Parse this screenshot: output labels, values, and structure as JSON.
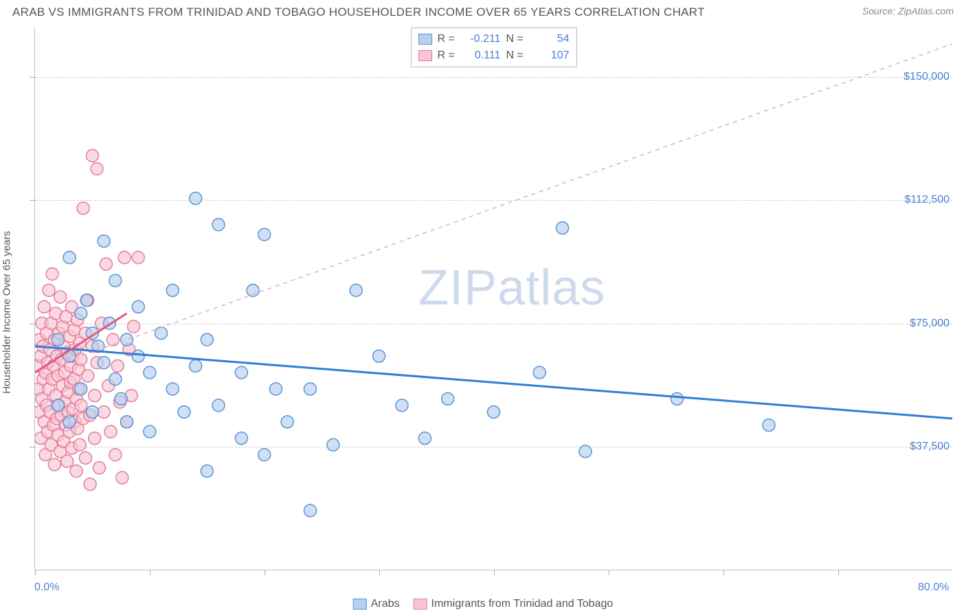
{
  "title": "ARAB VS IMMIGRANTS FROM TRINIDAD AND TOBAGO HOUSEHOLDER INCOME OVER 65 YEARS CORRELATION CHART",
  "source": "Source: ZipAtlas.com",
  "watermark": "ZIPatlas",
  "axis": {
    "y_title": "Householder Income Over 65 years",
    "x_min_label": "0.0%",
    "x_max_label": "80.0%",
    "x_min": 0.0,
    "x_max": 80.0,
    "y_min": 0,
    "y_max": 165000,
    "y_gridlines": [
      {
        "value": 37500,
        "label": "$37,500"
      },
      {
        "value": 75000,
        "label": "$75,000"
      },
      {
        "value": 112500,
        "label": "$112,500"
      },
      {
        "value": 150000,
        "label": "$150,000"
      }
    ],
    "x_ticks": [
      0,
      10,
      20,
      30,
      40,
      50,
      60,
      70
    ]
  },
  "colors": {
    "blue_fill": "#b6d0f0",
    "blue_stroke": "#5a94d6",
    "pink_fill": "#f8c6d3",
    "pink_stroke": "#e67a9a",
    "blue_line": "#2f7ed8",
    "pink_line": "#e05a85",
    "pink_dash": "#f0a8bf",
    "ylabel": "#4a7fd8",
    "grid": "#cccccc",
    "text": "#555555"
  },
  "marker_radius": 9,
  "series": [
    {
      "name": "Arabs",
      "color_key": "blue",
      "stats": {
        "R": "-0.211",
        "N": "54"
      },
      "trend": {
        "x1": 0,
        "y1": 68000,
        "x2": 80,
        "y2": 46000,
        "dash": false
      },
      "points": [
        [
          2,
          70000
        ],
        [
          2,
          50000
        ],
        [
          3,
          95000
        ],
        [
          3,
          65000
        ],
        [
          3,
          45000
        ],
        [
          4,
          78000
        ],
        [
          4,
          55000
        ],
        [
          4.5,
          82000
        ],
        [
          5,
          72000
        ],
        [
          5,
          48000
        ],
        [
          5.5,
          68000
        ],
        [
          6,
          100000
        ],
        [
          6,
          63000
        ],
        [
          6.5,
          75000
        ],
        [
          7,
          58000
        ],
        [
          7,
          88000
        ],
        [
          7.5,
          52000
        ],
        [
          8,
          70000
        ],
        [
          8,
          45000
        ],
        [
          9,
          65000
        ],
        [
          9,
          80000
        ],
        [
          10,
          60000
        ],
        [
          10,
          42000
        ],
        [
          11,
          72000
        ],
        [
          12,
          55000
        ],
        [
          12,
          85000
        ],
        [
          13,
          48000
        ],
        [
          14,
          113000
        ],
        [
          14,
          62000
        ],
        [
          15,
          30000
        ],
        [
          15,
          70000
        ],
        [
          16,
          105000
        ],
        [
          16,
          50000
        ],
        [
          18,
          40000
        ],
        [
          18,
          60000
        ],
        [
          19,
          85000
        ],
        [
          20,
          102000
        ],
        [
          20,
          35000
        ],
        [
          21,
          55000
        ],
        [
          22,
          45000
        ],
        [
          24,
          18000
        ],
        [
          24,
          55000
        ],
        [
          26,
          38000
        ],
        [
          28,
          85000
        ],
        [
          30,
          65000
        ],
        [
          32,
          50000
        ],
        [
          34,
          40000
        ],
        [
          36,
          52000
        ],
        [
          40,
          48000
        ],
        [
          44,
          60000
        ],
        [
          46,
          104000
        ],
        [
          48,
          36000
        ],
        [
          56,
          52000
        ],
        [
          64,
          44000
        ]
      ]
    },
    {
      "name": "Immigants from Trinidad and Tobago",
      "legend_label": "Immigrants from Trinidad and Tobago",
      "color_key": "pink",
      "stats": {
        "R": "0.111",
        "N": "107"
      },
      "trend": {
        "x1": 0,
        "y1": 60000,
        "x2": 8,
        "y2": 78000,
        "dash": false
      },
      "projection": {
        "x1": 0,
        "y1": 60000,
        "x2": 80,
        "y2": 160000,
        "dash": true
      },
      "points": [
        [
          0.3,
          62000
        ],
        [
          0.3,
          55000
        ],
        [
          0.4,
          70000
        ],
        [
          0.4,
          48000
        ],
        [
          0.5,
          65000
        ],
        [
          0.5,
          40000
        ],
        [
          0.6,
          75000
        ],
        [
          0.6,
          52000
        ],
        [
          0.7,
          58000
        ],
        [
          0.7,
          68000
        ],
        [
          0.8,
          45000
        ],
        [
          0.8,
          80000
        ],
        [
          0.9,
          60000
        ],
        [
          0.9,
          35000
        ],
        [
          1.0,
          72000
        ],
        [
          1.0,
          50000
        ],
        [
          1.1,
          63000
        ],
        [
          1.1,
          42000
        ],
        [
          1.2,
          85000
        ],
        [
          1.2,
          55000
        ],
        [
          1.3,
          48000
        ],
        [
          1.3,
          67000
        ],
        [
          1.4,
          38000
        ],
        [
          1.4,
          75000
        ],
        [
          1.5,
          58000
        ],
        [
          1.5,
          90000
        ],
        [
          1.6,
          44000
        ],
        [
          1.6,
          62000
        ],
        [
          1.7,
          70000
        ],
        [
          1.7,
          32000
        ],
        [
          1.8,
          53000
        ],
        [
          1.8,
          78000
        ],
        [
          1.9,
          46000
        ],
        [
          1.9,
          65000
        ],
        [
          2.0,
          59000
        ],
        [
          2.0,
          41000
        ],
        [
          2.1,
          72000
        ],
        [
          2.1,
          50000
        ],
        [
          2.2,
          83000
        ],
        [
          2.2,
          36000
        ],
        [
          2.3,
          64000
        ],
        [
          2.3,
          47000
        ],
        [
          2.4,
          56000
        ],
        [
          2.4,
          74000
        ],
        [
          2.5,
          39000
        ],
        [
          2.5,
          68000
        ],
        [
          2.6,
          51000
        ],
        [
          2.6,
          60000
        ],
        [
          2.7,
          44000
        ],
        [
          2.7,
          77000
        ],
        [
          2.8,
          33000
        ],
        [
          2.8,
          66000
        ],
        [
          2.9,
          54000
        ],
        [
          2.9,
          48000
        ],
        [
          3.0,
          71000
        ],
        [
          3.0,
          42000
        ],
        [
          3.1,
          62000
        ],
        [
          3.1,
          57000
        ],
        [
          3.2,
          80000
        ],
        [
          3.2,
          37000
        ],
        [
          3.3,
          65000
        ],
        [
          3.3,
          49000
        ],
        [
          3.4,
          58000
        ],
        [
          3.4,
          73000
        ],
        [
          3.5,
          45000
        ],
        [
          3.5,
          67000
        ],
        [
          3.6,
          52000
        ],
        [
          3.6,
          30000
        ],
        [
          3.7,
          76000
        ],
        [
          3.7,
          43000
        ],
        [
          3.8,
          61000
        ],
        [
          3.8,
          55000
        ],
        [
          3.9,
          69000
        ],
        [
          3.9,
          38000
        ],
        [
          4.0,
          64000
        ],
        [
          4.0,
          50000
        ],
        [
          4.2,
          110000
        ],
        [
          4.2,
          46000
        ],
        [
          4.4,
          72000
        ],
        [
          4.4,
          34000
        ],
        [
          4.6,
          59000
        ],
        [
          4.6,
          82000
        ],
        [
          4.8,
          47000
        ],
        [
          4.8,
          26000
        ],
        [
          5.0,
          68000
        ],
        [
          5.0,
          126000
        ],
        [
          5.2,
          53000
        ],
        [
          5.2,
          40000
        ],
        [
          5.4,
          122000
        ],
        [
          5.4,
          63000
        ],
        [
          5.6,
          31000
        ],
        [
          5.8,
          75000
        ],
        [
          6.0,
          48000
        ],
        [
          6.2,
          93000
        ],
        [
          6.4,
          56000
        ],
        [
          6.6,
          42000
        ],
        [
          6.8,
          70000
        ],
        [
          7.0,
          35000
        ],
        [
          7.2,
          62000
        ],
        [
          7.4,
          51000
        ],
        [
          7.6,
          28000
        ],
        [
          7.8,
          95000
        ],
        [
          8.0,
          45000
        ],
        [
          8.2,
          67000
        ],
        [
          8.4,
          53000
        ],
        [
          8.6,
          74000
        ],
        [
          9.0,
          95000
        ]
      ]
    }
  ],
  "legend_bottom": [
    {
      "label": "Arabs",
      "color_key": "blue"
    },
    {
      "label": "Immigrants from Trinidad and Tobago",
      "color_key": "pink"
    }
  ]
}
